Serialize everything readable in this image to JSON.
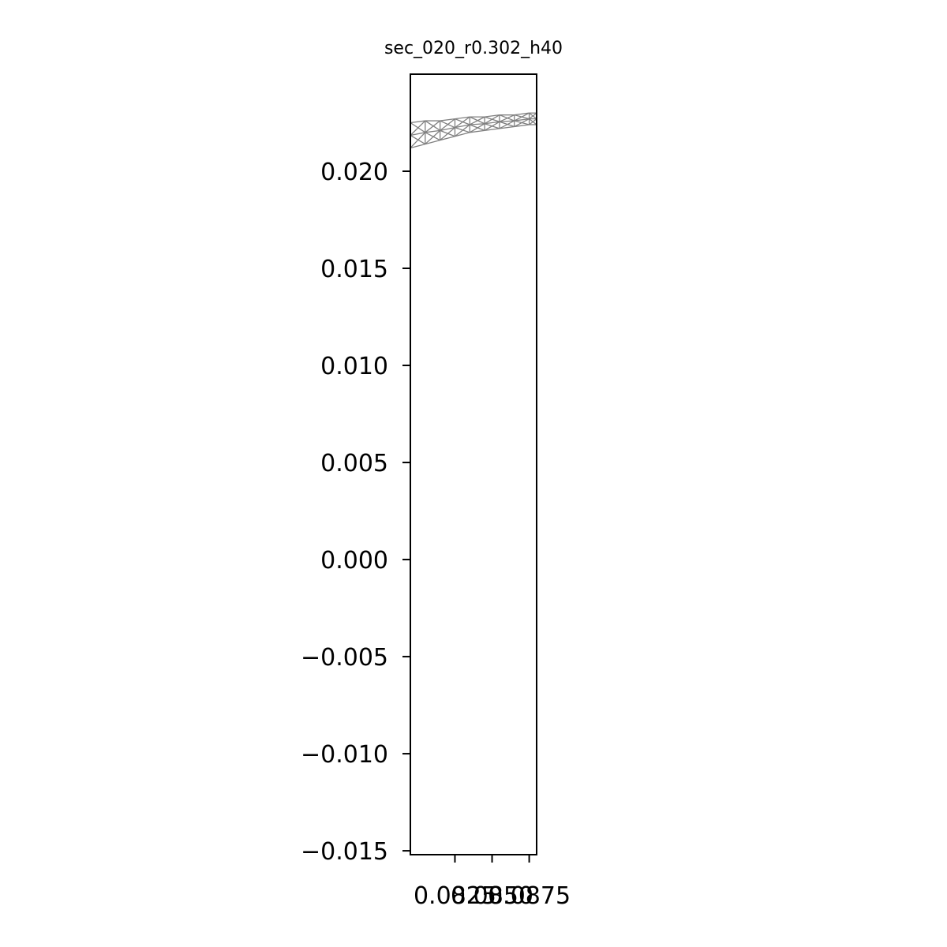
{
  "chart_data": {
    "type": "line",
    "title": "sec_020_r0.302_h40",
    "xlabel": "",
    "ylabel": "",
    "xlim": [
      0.0795,
      0.088
    ],
    "ylim": [
      -0.0152,
      0.025
    ],
    "x_ticks": [
      0.0825,
      0.085,
      0.0875
    ],
    "x_tick_labels": [
      "0.0825",
      "0.0850",
      "0.0875"
    ],
    "y_ticks": [
      -0.015,
      -0.01,
      -0.005,
      0.0,
      0.005,
      0.01,
      0.015,
      0.02
    ],
    "y_tick_labels": [
      "−0.015",
      "−0.010",
      "−0.005",
      "0.000",
      "0.005",
      "0.010",
      "0.015",
      "0.020"
    ],
    "grid": false,
    "mesh_color": "#808080",
    "mesh": {
      "x": [
        0.0795,
        0.0805,
        0.0815,
        0.0825,
        0.0835,
        0.0845,
        0.0855,
        0.0865,
        0.0875,
        0.088
      ],
      "y_lower": [
        0.0212,
        0.0214,
        0.0216,
        0.0218,
        0.022,
        0.0221,
        0.0222,
        0.0223,
        0.0224,
        0.0224
      ],
      "y_upper": [
        0.0225,
        0.0226,
        0.0226,
        0.0227,
        0.0228,
        0.0228,
        0.0229,
        0.0229,
        0.023,
        0.023
      ]
    }
  }
}
